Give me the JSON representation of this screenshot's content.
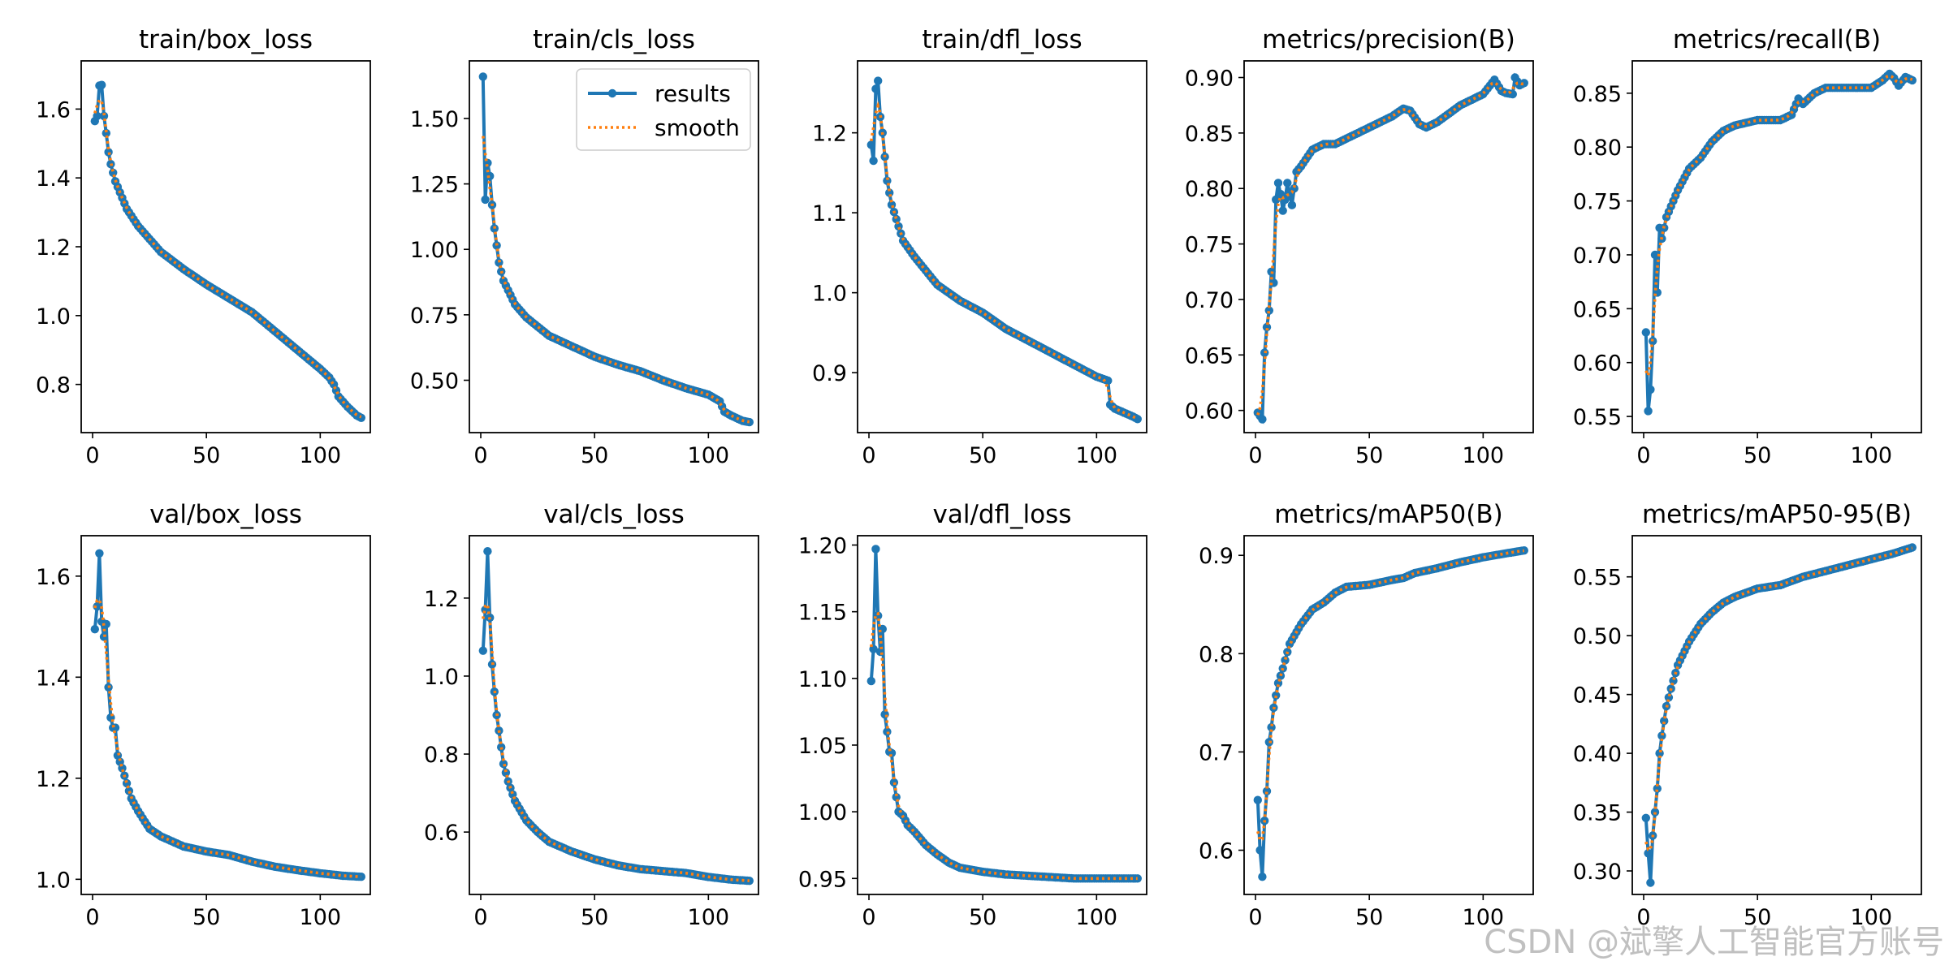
{
  "figure": {
    "watermark": "CSDN @斌擎人工智能官方账号"
  },
  "legend": {
    "entries": [
      "results",
      "smooth"
    ]
  },
  "colors": {
    "results": "#1f77b4",
    "smooth": "#ff7f0e",
    "axes": "#000000"
  },
  "chart_data": [
    {
      "type": "line",
      "title": "train/box_loss",
      "xlim": [
        -5,
        122
      ],
      "ylim": [
        0.66,
        1.74
      ],
      "xticks": [
        0,
        50,
        100
      ],
      "yticks": [
        0.8,
        1.0,
        1.2,
        1.4,
        1.6
      ],
      "ytick_decimals": 1,
      "n_points": 118,
      "key_points": [
        [
          1,
          1.565
        ],
        [
          2,
          1.58
        ],
        [
          3,
          1.668
        ],
        [
          4,
          1.67
        ],
        [
          5,
          1.58
        ],
        [
          6,
          1.53
        ],
        [
          7,
          1.475
        ],
        [
          8,
          1.44
        ],
        [
          10,
          1.39
        ],
        [
          15,
          1.31
        ],
        [
          20,
          1.26
        ],
        [
          30,
          1.185
        ],
        [
          40,
          1.135
        ],
        [
          50,
          1.09
        ],
        [
          60,
          1.05
        ],
        [
          70,
          1.01
        ],
        [
          80,
          0.955
        ],
        [
          90,
          0.9
        ],
        [
          100,
          0.845
        ],
        [
          104,
          0.82
        ],
        [
          106,
          0.8
        ],
        [
          108,
          0.765
        ],
        [
          112,
          0.735
        ],
        [
          116,
          0.71
        ],
        [
          118,
          0.703
        ]
      ]
    },
    {
      "type": "line",
      "title": "train/cls_loss",
      "xlim": [
        -5,
        122
      ],
      "ylim": [
        0.3,
        1.72
      ],
      "xticks": [
        0,
        50,
        100
      ],
      "yticks": [
        0.5,
        0.75,
        1.0,
        1.25,
        1.5
      ],
      "ytick_decimals": 2,
      "n_points": 118,
      "legend": "top-right",
      "key_points": [
        [
          1,
          1.66
        ],
        [
          2,
          1.19
        ],
        [
          3,
          1.33
        ],
        [
          4,
          1.28
        ],
        [
          5,
          1.17
        ],
        [
          6,
          1.08
        ],
        [
          8,
          0.95
        ],
        [
          10,
          0.88
        ],
        [
          15,
          0.79
        ],
        [
          20,
          0.74
        ],
        [
          30,
          0.67
        ],
        [
          40,
          0.63
        ],
        [
          50,
          0.59
        ],
        [
          60,
          0.56
        ],
        [
          70,
          0.535
        ],
        [
          80,
          0.5
        ],
        [
          90,
          0.47
        ],
        [
          100,
          0.445
        ],
        [
          105,
          0.42
        ],
        [
          107,
          0.38
        ],
        [
          110,
          0.365
        ],
        [
          115,
          0.345
        ],
        [
          118,
          0.34
        ]
      ]
    },
    {
      "type": "line",
      "title": "train/dfl_loss",
      "xlim": [
        -5,
        122
      ],
      "ylim": [
        0.825,
        1.29
      ],
      "xticks": [
        0,
        50,
        100
      ],
      "yticks": [
        0.9,
        1.0,
        1.1,
        1.2
      ],
      "ytick_decimals": 1,
      "n_points": 118,
      "key_points": [
        [
          1,
          1.185
        ],
        [
          2,
          1.165
        ],
        [
          3,
          1.255
        ],
        [
          4,
          1.265
        ],
        [
          5,
          1.22
        ],
        [
          6,
          1.2
        ],
        [
          7,
          1.17
        ],
        [
          8,
          1.14
        ],
        [
          10,
          1.11
        ],
        [
          15,
          1.065
        ],
        [
          20,
          1.045
        ],
        [
          30,
          1.01
        ],
        [
          40,
          0.99
        ],
        [
          50,
          0.975
        ],
        [
          60,
          0.955
        ],
        [
          70,
          0.94
        ],
        [
          80,
          0.925
        ],
        [
          90,
          0.91
        ],
        [
          100,
          0.895
        ],
        [
          105,
          0.89
        ],
        [
          106,
          0.86
        ],
        [
          108,
          0.855
        ],
        [
          112,
          0.85
        ],
        [
          116,
          0.845
        ],
        [
          118,
          0.842
        ]
      ]
    },
    {
      "type": "line",
      "title": "metrics/precision(B)",
      "xlim": [
        -5,
        122
      ],
      "ylim": [
        0.58,
        0.915
      ],
      "xticks": [
        0,
        50,
        100
      ],
      "yticks": [
        0.6,
        0.65,
        0.7,
        0.75,
        0.8,
        0.85,
        0.9
      ],
      "ytick_decimals": 2,
      "n_points": 118,
      "key_points": [
        [
          1,
          0.598
        ],
        [
          2,
          0.595
        ],
        [
          3,
          0.592
        ],
        [
          4,
          0.652
        ],
        [
          5,
          0.675
        ],
        [
          6,
          0.69
        ],
        [
          7,
          0.725
        ],
        [
          8,
          0.715
        ],
        [
          9,
          0.79
        ],
        [
          10,
          0.805
        ],
        [
          11,
          0.795
        ],
        [
          12,
          0.78
        ],
        [
          13,
          0.79
        ],
        [
          14,
          0.805
        ],
        [
          15,
          0.795
        ],
        [
          16,
          0.785
        ],
        [
          18,
          0.815
        ],
        [
          20,
          0.82
        ],
        [
          25,
          0.835
        ],
        [
          30,
          0.84
        ],
        [
          35,
          0.84
        ],
        [
          40,
          0.845
        ],
        [
          50,
          0.855
        ],
        [
          60,
          0.865
        ],
        [
          65,
          0.872
        ],
        [
          68,
          0.87
        ],
        [
          72,
          0.858
        ],
        [
          75,
          0.855
        ],
        [
          80,
          0.86
        ],
        [
          90,
          0.875
        ],
        [
          100,
          0.885
        ],
        [
          105,
          0.898
        ],
        [
          108,
          0.888
        ],
        [
          110,
          0.886
        ],
        [
          113,
          0.885
        ],
        [
          114,
          0.9
        ],
        [
          116,
          0.893
        ],
        [
          118,
          0.895
        ]
      ]
    },
    {
      "type": "line",
      "title": "metrics/recall(B)",
      "xlim": [
        -5,
        122
      ],
      "ylim": [
        0.535,
        0.88
      ],
      "xticks": [
        0,
        50,
        100
      ],
      "yticks": [
        0.55,
        0.6,
        0.65,
        0.7,
        0.75,
        0.8,
        0.85
      ],
      "ytick_decimals": 2,
      "n_points": 118,
      "key_points": [
        [
          1,
          0.628
        ],
        [
          2,
          0.555
        ],
        [
          3,
          0.575
        ],
        [
          4,
          0.62
        ],
        [
          5,
          0.7
        ],
        [
          6,
          0.665
        ],
        [
          7,
          0.725
        ],
        [
          8,
          0.715
        ],
        [
          10,
          0.735
        ],
        [
          12,
          0.745
        ],
        [
          15,
          0.76
        ],
        [
          20,
          0.78
        ],
        [
          25,
          0.79
        ],
        [
          30,
          0.805
        ],
        [
          35,
          0.815
        ],
        [
          40,
          0.82
        ],
        [
          50,
          0.825
        ],
        [
          60,
          0.825
        ],
        [
          65,
          0.83
        ],
        [
          68,
          0.845
        ],
        [
          70,
          0.84
        ],
        [
          75,
          0.85
        ],
        [
          80,
          0.855
        ],
        [
          90,
          0.855
        ],
        [
          100,
          0.855
        ],
        [
          105,
          0.862
        ],
        [
          108,
          0.868
        ],
        [
          110,
          0.864
        ],
        [
          112,
          0.857
        ],
        [
          115,
          0.865
        ],
        [
          118,
          0.862
        ]
      ]
    },
    {
      "type": "line",
      "title": "val/box_loss",
      "xlim": [
        -5,
        122
      ],
      "ylim": [
        0.97,
        1.68
      ],
      "xticks": [
        0,
        50,
        100
      ],
      "yticks": [
        1.0,
        1.2,
        1.4,
        1.6
      ],
      "ytick_decimals": 1,
      "n_points": 118,
      "key_points": [
        [
          1,
          1.495
        ],
        [
          2,
          1.54
        ],
        [
          3,
          1.645
        ],
        [
          4,
          1.51
        ],
        [
          5,
          1.48
        ],
        [
          6,
          1.505
        ],
        [
          7,
          1.38
        ],
        [
          8,
          1.32
        ],
        [
          9,
          1.3
        ],
        [
          10,
          1.3
        ],
        [
          11,
          1.245
        ],
        [
          13,
          1.22
        ],
        [
          15,
          1.19
        ],
        [
          17,
          1.16
        ],
        [
          20,
          1.135
        ],
        [
          25,
          1.1
        ],
        [
          30,
          1.085
        ],
        [
          35,
          1.075
        ],
        [
          40,
          1.065
        ],
        [
          50,
          1.055
        ],
        [
          60,
          1.048
        ],
        [
          70,
          1.035
        ],
        [
          80,
          1.025
        ],
        [
          90,
          1.018
        ],
        [
          100,
          1.012
        ],
        [
          110,
          1.007
        ],
        [
          118,
          1.005
        ]
      ]
    },
    {
      "type": "line",
      "title": "val/cls_loss",
      "xlim": [
        -5,
        122
      ],
      "ylim": [
        0.44,
        1.36
      ],
      "xticks": [
        0,
        50,
        100
      ],
      "yticks": [
        0.6,
        0.8,
        1.0,
        1.2
      ],
      "ytick_decimals": 1,
      "n_points": 118,
      "key_points": [
        [
          1,
          1.065
        ],
        [
          2,
          1.17
        ],
        [
          3,
          1.32
        ],
        [
          4,
          1.15
        ],
        [
          5,
          1.03
        ],
        [
          6,
          0.96
        ],
        [
          7,
          0.9
        ],
        [
          8,
          0.86
        ],
        [
          10,
          0.775
        ],
        [
          12,
          0.73
        ],
        [
          15,
          0.68
        ],
        [
          20,
          0.63
        ],
        [
          25,
          0.6
        ],
        [
          30,
          0.575
        ],
        [
          40,
          0.55
        ],
        [
          50,
          0.53
        ],
        [
          60,
          0.515
        ],
        [
          70,
          0.505
        ],
        [
          80,
          0.5
        ],
        [
          90,
          0.495
        ],
        [
          100,
          0.485
        ],
        [
          110,
          0.478
        ],
        [
          118,
          0.475
        ]
      ]
    },
    {
      "type": "line",
      "title": "val/dfl_loss",
      "xlim": [
        -5,
        122
      ],
      "ylim": [
        0.938,
        1.207
      ],
      "xticks": [
        0,
        50,
        100
      ],
      "yticks": [
        0.95,
        1.0,
        1.05,
        1.1,
        1.15,
        1.2
      ],
      "ytick_decimals": 2,
      "n_points": 118,
      "key_points": [
        [
          1,
          1.098
        ],
        [
          2,
          1.122
        ],
        [
          3,
          1.197
        ],
        [
          4,
          1.147
        ],
        [
          5,
          1.12
        ],
        [
          6,
          1.137
        ],
        [
          7,
          1.073
        ],
        [
          8,
          1.06
        ],
        [
          9,
          1.045
        ],
        [
          10,
          1.044
        ],
        [
          11,
          1.022
        ],
        [
          13,
          1.0
        ],
        [
          15,
          0.997
        ],
        [
          17,
          0.99
        ],
        [
          20,
          0.985
        ],
        [
          25,
          0.975
        ],
        [
          30,
          0.968
        ],
        [
          35,
          0.962
        ],
        [
          40,
          0.958
        ],
        [
          50,
          0.955
        ],
        [
          60,
          0.953
        ],
        [
          70,
          0.952
        ],
        [
          80,
          0.951
        ],
        [
          90,
          0.95
        ],
        [
          100,
          0.95
        ],
        [
          110,
          0.95
        ],
        [
          118,
          0.95
        ]
      ]
    },
    {
      "type": "line",
      "title": "metrics/mAP50(B)",
      "xlim": [
        -5,
        122
      ],
      "ylim": [
        0.555,
        0.92
      ],
      "xticks": [
        0,
        50,
        100
      ],
      "yticks": [
        0.6,
        0.7,
        0.8,
        0.9
      ],
      "ytick_decimals": 1,
      "n_points": 118,
      "key_points": [
        [
          1,
          0.651
        ],
        [
          2,
          0.6
        ],
        [
          3,
          0.573
        ],
        [
          4,
          0.63
        ],
        [
          5,
          0.66
        ],
        [
          6,
          0.71
        ],
        [
          7,
          0.725
        ],
        [
          8,
          0.745
        ],
        [
          10,
          0.77
        ],
        [
          12,
          0.785
        ],
        [
          15,
          0.81
        ],
        [
          20,
          0.83
        ],
        [
          25,
          0.845
        ],
        [
          30,
          0.852
        ],
        [
          35,
          0.862
        ],
        [
          40,
          0.868
        ],
        [
          50,
          0.87
        ],
        [
          60,
          0.875
        ],
        [
          65,
          0.877
        ],
        [
          70,
          0.882
        ],
        [
          80,
          0.887
        ],
        [
          90,
          0.893
        ],
        [
          100,
          0.898
        ],
        [
          110,
          0.902
        ],
        [
          118,
          0.905
        ]
      ]
    },
    {
      "type": "line",
      "title": "metrics/mAP50-95(B)",
      "xlim": [
        -5,
        122
      ],
      "ylim": [
        0.28,
        0.585
      ],
      "xticks": [
        0,
        50,
        100
      ],
      "yticks": [
        0.3,
        0.35,
        0.4,
        0.45,
        0.5,
        0.55
      ],
      "ytick_decimals": 2,
      "n_points": 118,
      "key_points": [
        [
          1,
          0.345
        ],
        [
          2,
          0.315
        ],
        [
          3,
          0.29
        ],
        [
          4,
          0.33
        ],
        [
          5,
          0.35
        ],
        [
          6,
          0.37
        ],
        [
          7,
          0.4
        ],
        [
          8,
          0.415
        ],
        [
          10,
          0.44
        ],
        [
          12,
          0.455
        ],
        [
          15,
          0.475
        ],
        [
          20,
          0.495
        ],
        [
          25,
          0.51
        ],
        [
          30,
          0.52
        ],
        [
          35,
          0.528
        ],
        [
          40,
          0.533
        ],
        [
          50,
          0.54
        ],
        [
          60,
          0.543
        ],
        [
          70,
          0.55
        ],
        [
          80,
          0.555
        ],
        [
          90,
          0.56
        ],
        [
          100,
          0.565
        ],
        [
          110,
          0.57
        ],
        [
          118,
          0.575
        ]
      ]
    }
  ]
}
